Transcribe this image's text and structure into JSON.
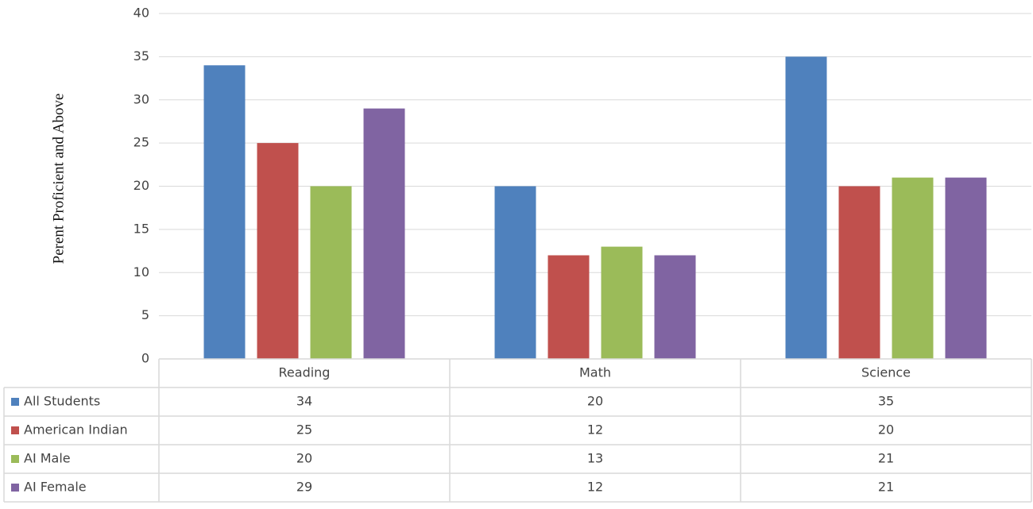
{
  "chart_data": {
    "type": "bar",
    "y_label": "Perent Proficient and Above",
    "categories": [
      "Reading",
      "Math",
      "Science"
    ],
    "series": [
      {
        "name": "All Students",
        "color": "#4f81bd",
        "values": [
          34,
          20,
          35
        ]
      },
      {
        "name": "American Indian",
        "color": "#c0504d",
        "values": [
          25,
          12,
          20
        ]
      },
      {
        "name": "AI Male",
        "color": "#9bbb59",
        "values": [
          20,
          13,
          21
        ]
      },
      {
        "name": "AI Female",
        "color": "#8064a2",
        "values": [
          29,
          12,
          21
        ]
      }
    ],
    "ylim": [
      0,
      40
    ],
    "yticks": [
      0,
      5,
      10,
      15,
      20,
      25,
      30,
      35,
      40
    ],
    "grid": true,
    "data_table": true
  }
}
